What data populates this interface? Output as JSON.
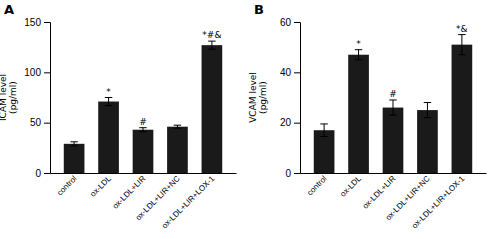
{
  "chart_data": [
    {
      "type": "bar",
      "title": "A",
      "ylabel": "ICAM level\n(pg/ml)",
      "categories": [
        "control",
        "ox-LDL",
        "ox-LDL+LIR",
        "ox-LDL+LIR+NC",
        "ox-LDL+LIR+LOX-1"
      ],
      "values": [
        29,
        71,
        43,
        46,
        127
      ],
      "errors": [
        2,
        4,
        2,
        1.5,
        4
      ],
      "annotations": [
        null,
        "*",
        "#",
        null,
        "*#&"
      ],
      "color": "#1a1a1a",
      "ylim": [
        0,
        150
      ],
      "yticks": [
        0,
        50,
        100,
        150
      ]
    },
    {
      "type": "bar",
      "title": "B",
      "ylabel": "VCAM level\n(pg/ml)",
      "categories": [
        "control",
        "ox-LDL",
        "ox-LDL+LIR",
        "ox-LDL+LIR+NC",
        "ox-LDL+LIR+LOX-1"
      ],
      "values": [
        17,
        47,
        26,
        25,
        51
      ],
      "errors": [
        2.5,
        2,
        3,
        3,
        4
      ],
      "annotations": [
        null,
        "*",
        "#",
        null,
        "*&"
      ],
      "color": "#1a1a1a",
      "ylim": [
        0,
        60
      ],
      "yticks": [
        0,
        20,
        40,
        60
      ]
    }
  ]
}
